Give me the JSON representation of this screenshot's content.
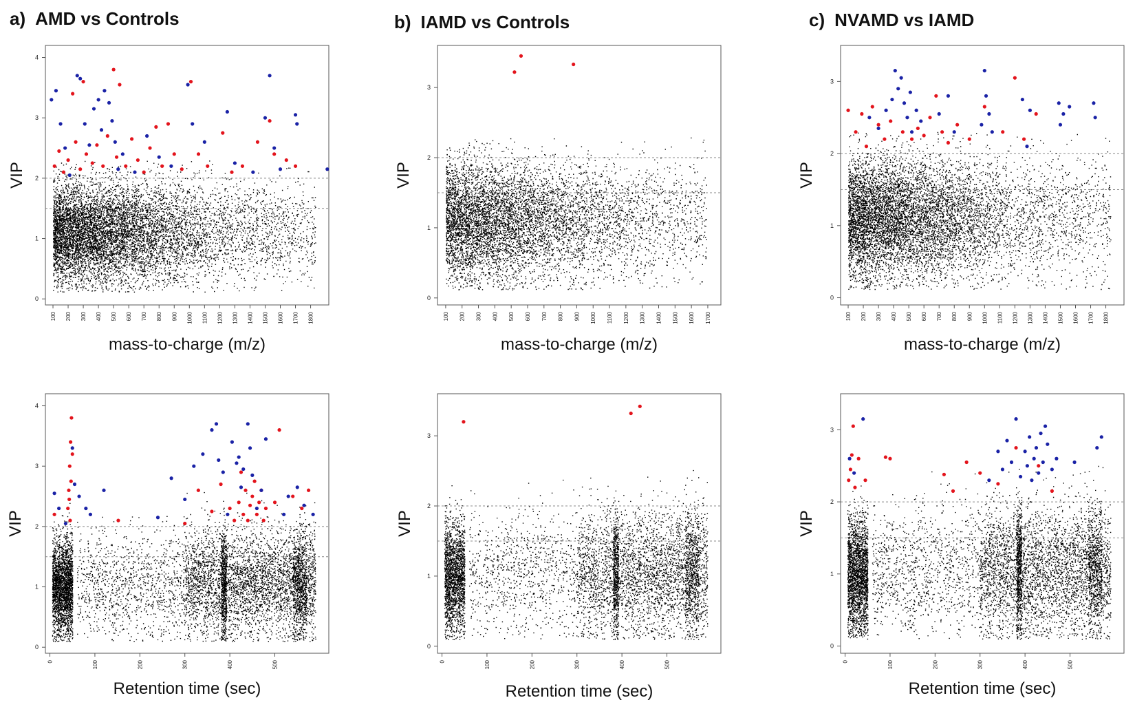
{
  "panels": [
    {
      "letter": "a)",
      "title": "AMD vs Controls"
    },
    {
      "letter": "b)",
      "title": "IAMD vs Controls"
    },
    {
      "letter": "c)",
      "title": "NVAMD vs IAMD"
    }
  ],
  "colors": {
    "background_points": "#000000",
    "significant_red": "#e3141c",
    "significant_blue": "#1a22a6",
    "threshold_line": "#888888",
    "frame": "#555555"
  },
  "chart_data": [
    {
      "id": "a-mz",
      "panel": "a)",
      "type": "scatter",
      "title": "AMD vs Controls",
      "xlabel": "mass-to-charge (m/z)",
      "ylabel": "VIP",
      "xlim": [
        50,
        1920
      ],
      "ylim": [
        -0.1,
        4.2
      ],
      "xticks": [
        100,
        200,
        300,
        400,
        500,
        600,
        700,
        800,
        900,
        1000,
        1100,
        1200,
        1300,
        1400,
        1500,
        1600,
        1700,
        1800
      ],
      "yticks": [
        0,
        1,
        2,
        3,
        4
      ],
      "thresholds": [
        2.0,
        1.5
      ],
      "n_background_points": 8500,
      "red_points": [
        [
          110,
          2.2
        ],
        [
          140,
          2.45
        ],
        [
          170,
          2.1
        ],
        [
          200,
          2.3
        ],
        [
          230,
          3.4
        ],
        [
          250,
          2.6
        ],
        [
          280,
          2.15
        ],
        [
          300,
          3.6
        ],
        [
          320,
          2.4
        ],
        [
          360,
          2.25
        ],
        [
          390,
          2.55
        ],
        [
          430,
          2.2
        ],
        [
          460,
          2.7
        ],
        [
          500,
          3.8
        ],
        [
          520,
          2.35
        ],
        [
          540,
          3.55
        ],
        [
          580,
          2.2
        ],
        [
          620,
          2.65
        ],
        [
          660,
          2.3
        ],
        [
          700,
          2.1
        ],
        [
          740,
          2.5
        ],
        [
          780,
          2.85
        ],
        [
          820,
          2.2
        ],
        [
          860,
          2.9
        ],
        [
          900,
          2.4
        ],
        [
          950,
          2.15
        ],
        [
          1010,
          3.6
        ],
        [
          1060,
          2.4
        ],
        [
          1120,
          2.2
        ],
        [
          1220,
          2.75
        ],
        [
          1280,
          2.1
        ],
        [
          1350,
          2.2
        ],
        [
          1450,
          2.6
        ],
        [
          1530,
          2.95
        ],
        [
          1560,
          2.4
        ],
        [
          1640,
          2.3
        ],
        [
          1700,
          2.2
        ]
      ],
      "blue_points": [
        [
          90,
          3.3
        ],
        [
          120,
          3.45
        ],
        [
          150,
          2.9
        ],
        [
          180,
          2.5
        ],
        [
          210,
          2.05
        ],
        [
          260,
          3.7
        ],
        [
          280,
          3.65
        ],
        [
          310,
          2.9
        ],
        [
          340,
          2.55
        ],
        [
          370,
          3.15
        ],
        [
          400,
          3.3
        ],
        [
          420,
          2.8
        ],
        [
          440,
          3.45
        ],
        [
          470,
          3.25
        ],
        [
          490,
          2.95
        ],
        [
          510,
          2.6
        ],
        [
          530,
          2.15
        ],
        [
          560,
          2.4
        ],
        [
          640,
          2.1
        ],
        [
          720,
          2.7
        ],
        [
          800,
          2.35
        ],
        [
          880,
          2.2
        ],
        [
          990,
          3.55
        ],
        [
          1020,
          2.9
        ],
        [
          1100,
          2.6
        ],
        [
          1250,
          3.1
        ],
        [
          1300,
          2.25
        ],
        [
          1420,
          2.1
        ],
        [
          1500,
          3.0
        ],
        [
          1530,
          3.7
        ],
        [
          1560,
          2.5
        ],
        [
          1600,
          2.15
        ],
        [
          1700,
          3.05
        ],
        [
          1710,
          2.9
        ],
        [
          1910,
          2.15
        ]
      ]
    },
    {
      "id": "b-mz",
      "panel": "b)",
      "type": "scatter",
      "title": "IAMD vs Controls",
      "xlabel": "mass-to-charge (m/z)",
      "ylabel": "VIP",
      "xlim": [
        50,
        1780
      ],
      "ylim": [
        -0.1,
        3.6
      ],
      "xticks": [
        100,
        200,
        300,
        400,
        500,
        600,
        700,
        800,
        900,
        1000,
        1100,
        1200,
        1300,
        1400,
        1500,
        1600,
        1700
      ],
      "yticks": [
        0,
        1,
        2,
        3
      ],
      "thresholds": [
        2.0,
        1.5
      ],
      "n_background_points": 7000,
      "red_points": [
        [
          520,
          3.22
        ],
        [
          560,
          3.45
        ],
        [
          880,
          3.33
        ]
      ],
      "blue_points": []
    },
    {
      "id": "c-mz",
      "panel": "c)",
      "type": "scatter",
      "title": "NVAMD vs IAMD",
      "xlabel": "mass-to-charge (m/z)",
      "ylabel": "VIP",
      "xlim": [
        50,
        1920
      ],
      "ylim": [
        -0.1,
        3.5
      ],
      "xticks": [
        100,
        200,
        300,
        400,
        500,
        600,
        700,
        800,
        900,
        1000,
        1100,
        1200,
        1300,
        1400,
        1500,
        1600,
        1700,
        1800
      ],
      "yticks": [
        0,
        1,
        2,
        3
      ],
      "thresholds": [
        2.0,
        1.5
      ],
      "n_background_points": 8000,
      "red_points": [
        [
          100,
          2.6
        ],
        [
          150,
          2.3
        ],
        [
          190,
          2.55
        ],
        [
          220,
          2.1
        ],
        [
          260,
          2.65
        ],
        [
          300,
          2.4
        ],
        [
          340,
          2.2
        ],
        [
          380,
          2.45
        ],
        [
          460,
          2.3
        ],
        [
          520,
          2.2
        ],
        [
          560,
          2.35
        ],
        [
          600,
          2.25
        ],
        [
          640,
          2.5
        ],
        [
          680,
          2.8
        ],
        [
          720,
          2.3
        ],
        [
          760,
          2.15
        ],
        [
          820,
          2.4
        ],
        [
          900,
          2.2
        ],
        [
          1000,
          2.65
        ],
        [
          1120,
          2.3
        ],
        [
          1200,
          3.05
        ],
        [
          1260,
          2.2
        ],
        [
          1340,
          2.55
        ]
      ],
      "blue_points": [
        [
          240,
          2.5
        ],
        [
          300,
          2.35
        ],
        [
          350,
          2.6
        ],
        [
          390,
          2.75
        ],
        [
          410,
          3.15
        ],
        [
          430,
          2.9
        ],
        [
          450,
          3.05
        ],
        [
          470,
          2.7
        ],
        [
          490,
          2.5
        ],
        [
          510,
          2.85
        ],
        [
          520,
          2.3
        ],
        [
          550,
          2.6
        ],
        [
          580,
          2.45
        ],
        [
          700,
          2.55
        ],
        [
          760,
          2.8
        ],
        [
          800,
          2.3
        ],
        [
          980,
          2.4
        ],
        [
          1000,
          3.15
        ],
        [
          1010,
          2.8
        ],
        [
          1030,
          2.55
        ],
        [
          1050,
          2.3
        ],
        [
          1250,
          2.75
        ],
        [
          1280,
          2.1
        ],
        [
          1300,
          2.6
        ],
        [
          1490,
          2.7
        ],
        [
          1500,
          2.4
        ],
        [
          1520,
          2.55
        ],
        [
          1560,
          2.65
        ],
        [
          1720,
          2.7
        ],
        [
          1730,
          2.5
        ]
      ]
    },
    {
      "id": "a-rt",
      "panel": "a)",
      "type": "scatter",
      "title": "AMD vs Controls",
      "xlabel": "Retention time (sec)",
      "ylabel": "VIP",
      "xlim": [
        -10,
        620
      ],
      "ylim": [
        -0.1,
        4.2
      ],
      "xticks": [
        0,
        100,
        200,
        300,
        400,
        500
      ],
      "yticks": [
        0,
        1,
        2,
        3,
        4
      ],
      "thresholds": [
        2.0,
        1.5
      ],
      "n_background_points": 8500,
      "red_points": [
        [
          10,
          2.2
        ],
        [
          40,
          2.3
        ],
        [
          42,
          2.6
        ],
        [
          44,
          3.0
        ],
        [
          46,
          3.4
        ],
        [
          48,
          3.8
        ],
        [
          45,
          2.1
        ],
        [
          43,
          2.45
        ],
        [
          47,
          2.75
        ],
        [
          50,
          3.2
        ],
        [
          152,
          2.1
        ],
        [
          300,
          2.05
        ],
        [
          330,
          2.6
        ],
        [
          360,
          2.25
        ],
        [
          380,
          2.7
        ],
        [
          400,
          2.3
        ],
        [
          410,
          2.1
        ],
        [
          420,
          2.4
        ],
        [
          425,
          2.9
        ],
        [
          430,
          2.2
        ],
        [
          435,
          2.6
        ],
        [
          440,
          2.1
        ],
        [
          445,
          2.35
        ],
        [
          450,
          2.5
        ],
        [
          455,
          2.75
        ],
        [
          460,
          2.2
        ],
        [
          465,
          2.4
        ],
        [
          470,
          2.6
        ],
        [
          475,
          2.1
        ],
        [
          480,
          2.3
        ],
        [
          500,
          2.4
        ],
        [
          510,
          3.6
        ],
        [
          540,
          2.5
        ],
        [
          560,
          2.3
        ],
        [
          575,
          2.6
        ]
      ],
      "blue_points": [
        [
          10,
          2.55
        ],
        [
          20,
          2.3
        ],
        [
          35,
          2.05
        ],
        [
          50,
          3.3
        ],
        [
          55,
          2.7
        ],
        [
          65,
          2.5
        ],
        [
          80,
          2.3
        ],
        [
          90,
          2.2
        ],
        [
          120,
          2.6
        ],
        [
          240,
          2.15
        ],
        [
          270,
          2.8
        ],
        [
          300,
          2.45
        ],
        [
          320,
          3.0
        ],
        [
          340,
          3.2
        ],
        [
          360,
          3.6
        ],
        [
          370,
          3.7
        ],
        [
          375,
          3.1
        ],
        [
          385,
          2.9
        ],
        [
          395,
          2.2
        ],
        [
          405,
          3.4
        ],
        [
          415,
          3.05
        ],
        [
          420,
          3.15
        ],
        [
          425,
          2.65
        ],
        [
          430,
          2.95
        ],
        [
          440,
          3.7
        ],
        [
          445,
          3.3
        ],
        [
          450,
          2.85
        ],
        [
          460,
          2.3
        ],
        [
          470,
          2.6
        ],
        [
          480,
          3.45
        ],
        [
          520,
          2.2
        ],
        [
          530,
          2.5
        ],
        [
          550,
          2.65
        ],
        [
          565,
          2.35
        ],
        [
          585,
          2.2
        ]
      ]
    },
    {
      "id": "b-rt",
      "panel": "b)",
      "type": "scatter",
      "title": "IAMD vs Controls",
      "xlabel": "Retention time (sec)",
      "ylabel": "VIP",
      "xlim": [
        -10,
        620
      ],
      "ylim": [
        -0.1,
        3.6
      ],
      "xticks": [
        0,
        100,
        200,
        300,
        400,
        500
      ],
      "yticks": [
        0,
        1,
        2,
        3
      ],
      "thresholds": [
        2.0,
        1.5
      ],
      "n_background_points": 7000,
      "red_points": [
        [
          48,
          3.2
        ],
        [
          420,
          3.32
        ],
        [
          440,
          3.42
        ]
      ],
      "blue_points": []
    },
    {
      "id": "c-rt",
      "panel": "c)",
      "type": "scatter",
      "title": "NVAMD vs IAMD",
      "xlabel": "Retention time (sec)",
      "ylabel": "VIP",
      "xlim": [
        -10,
        620
      ],
      "ylim": [
        -0.1,
        3.5
      ],
      "xticks": [
        0,
        100,
        200,
        300,
        400,
        500
      ],
      "yticks": [
        0,
        1,
        2,
        3
      ],
      "thresholds": [
        2.0,
        1.5
      ],
      "n_background_points": 8000,
      "red_points": [
        [
          8,
          2.3
        ],
        [
          12,
          2.45
        ],
        [
          15,
          2.65
        ],
        [
          18,
          3.05
        ],
        [
          22,
          2.2
        ],
        [
          30,
          2.6
        ],
        [
          45,
          2.3
        ],
        [
          90,
          2.62
        ],
        [
          100,
          2.6
        ],
        [
          220,
          2.38
        ],
        [
          240,
          2.15
        ],
        [
          270,
          2.55
        ],
        [
          300,
          2.4
        ],
        [
          340,
          2.25
        ],
        [
          380,
          2.75
        ],
        [
          430,
          2.5
        ],
        [
          460,
          2.15
        ]
      ],
      "blue_points": [
        [
          10,
          2.6
        ],
        [
          20,
          2.4
        ],
        [
          40,
          3.15
        ],
        [
          320,
          2.3
        ],
        [
          340,
          2.7
        ],
        [
          350,
          2.45
        ],
        [
          360,
          2.85
        ],
        [
          370,
          2.55
        ],
        [
          380,
          3.15
        ],
        [
          390,
          2.35
        ],
        [
          400,
          2.7
        ],
        [
          405,
          2.5
        ],
        [
          410,
          2.9
        ],
        [
          415,
          2.3
        ],
        [
          420,
          2.6
        ],
        [
          425,
          2.75
        ],
        [
          430,
          2.4
        ],
        [
          435,
          2.95
        ],
        [
          440,
          2.55
        ],
        [
          445,
          3.05
        ],
        [
          450,
          2.8
        ],
        [
          460,
          2.45
        ],
        [
          470,
          2.6
        ],
        [
          510,
          2.55
        ],
        [
          560,
          2.75
        ],
        [
          570,
          2.9
        ]
      ]
    }
  ]
}
